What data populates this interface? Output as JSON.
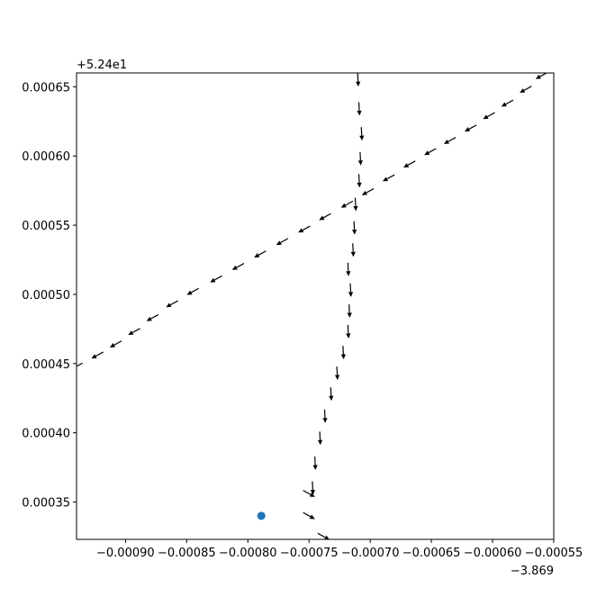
{
  "chart_data": {
    "type": "quiver",
    "title": "",
    "xlabel": "",
    "ylabel": "",
    "x_offset_label": "−3.869",
    "y_offset_label": "+5.24e1",
    "xlim": [
      -0.00094,
      -0.00055
    ],
    "ylim": [
      0.000323,
      0.00066
    ],
    "x_ticks": [
      -0.0009,
      -0.00085,
      -0.0008,
      -0.00075,
      -0.0007,
      -0.00065,
      -0.0006,
      -0.00055
    ],
    "x_tick_labels": [
      "−0.00090",
      "−0.00085",
      "−0.00080",
      "−0.00075",
      "−0.00070",
      "−0.00065",
      "−0.00060",
      "−0.00055"
    ],
    "y_ticks": [
      0.00035,
      0.0004,
      0.00045,
      0.0005,
      0.00055,
      0.0006,
      0.00065
    ],
    "y_tick_labels": [
      "0.00035",
      "0.00040",
      "0.00045",
      "0.00050",
      "0.00055",
      "0.00060",
      "0.00065"
    ],
    "grid": false,
    "arrow_color": "#000000",
    "marker_color": "#1f77b4",
    "marker": {
      "x": -0.000789,
      "y": 0.00034
    },
    "arrow_sets": [
      {
        "direction": "down",
        "points": [
          [
            -0.00071,
            0.000655
          ],
          [
            -0.000709,
            0.000634
          ],
          [
            -0.000707,
            0.000616
          ],
          [
            -0.000708,
            0.000598
          ],
          [
            -0.000709,
            0.000582
          ],
          [
            -0.000712,
            0.000565
          ],
          [
            -0.000713,
            0.000548
          ],
          [
            -0.000714,
            0.000532
          ],
          [
            -0.000718,
            0.000518
          ],
          [
            -0.000716,
            0.000503
          ],
          [
            -0.000717,
            0.000488
          ],
          [
            -0.000718,
            0.000473
          ],
          [
            -0.000722,
            0.000458
          ],
          [
            -0.000727,
            0.000443
          ],
          [
            -0.000732,
            0.000428
          ],
          [
            -0.000737,
            0.000412
          ],
          [
            -0.000741,
            0.000396
          ],
          [
            -0.000745,
            0.000378
          ],
          [
            -0.000747,
            0.00036
          ]
        ]
      },
      {
        "direction": "lower-left",
        "points": [
          [
            -0.00056,
            0.000658
          ],
          [
            -0.000573,
            0.000648
          ],
          [
            -0.000588,
            0.000638
          ],
          [
            -0.000603,
            0.000629
          ],
          [
            -0.000618,
            0.00062
          ],
          [
            -0.000635,
            0.000611
          ],
          [
            -0.000651,
            0.000603
          ],
          [
            -0.000668,
            0.000594
          ],
          [
            -0.000685,
            0.000584
          ],
          [
            -0.000702,
            0.000574
          ],
          [
            -0.000719,
            0.000565
          ],
          [
            -0.000737,
            0.000556
          ],
          [
            -0.000754,
            0.000547
          ],
          [
            -0.000772,
            0.000538
          ],
          [
            -0.00079,
            0.000529
          ],
          [
            -0.000808,
            0.00052
          ],
          [
            -0.000826,
            0.000511
          ],
          [
            -0.000845,
            0.000502
          ],
          [
            -0.000862,
            0.000493
          ],
          [
            -0.000878,
            0.000483
          ],
          [
            -0.000893,
            0.000473
          ],
          [
            -0.000908,
            0.000464
          ],
          [
            -0.000923,
            0.000456
          ],
          [
            -0.00094,
            0.000448
          ]
        ]
      },
      {
        "direction": "lower-right",
        "points": [
          [
            -0.00075,
            0.000356
          ],
          [
            -0.00075,
            0.00034
          ],
          [
            -0.000738,
            0.000325
          ]
        ]
      }
    ]
  }
}
